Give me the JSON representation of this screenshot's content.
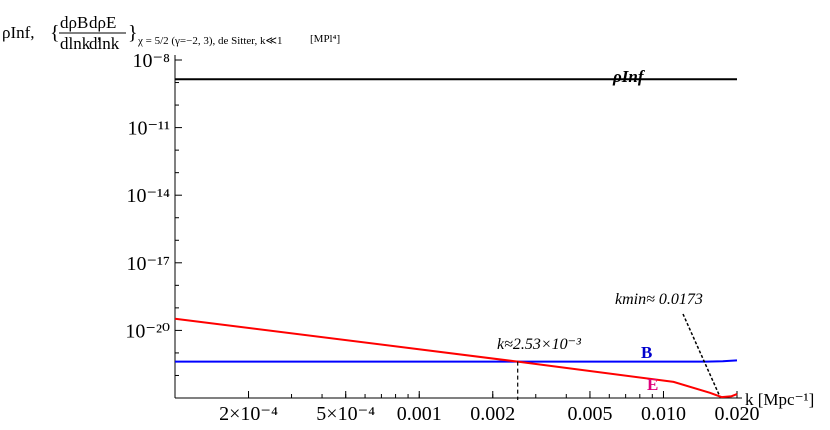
{
  "chart_data": {
    "type": "line",
    "x_scale": "log",
    "y_scale": "log",
    "xlim": [
      0.0001,
      0.02
    ],
    "ylim": [
      1e-23,
      1e-08
    ],
    "grid": false,
    "ylabel": {
      "rho_inf": "ρInf,",
      "brace_open": "{",
      "frac1_num": "dρB",
      "frac1_den": "dlnk",
      "comma": ",",
      "frac2_num": "dρE",
      "frac2_den": "dlnk",
      "brace_close": "}",
      "subscript": "χ = 5/2 (γ=−2, 3), de Sitter, k≪1",
      "units": "[MPl⁴]"
    },
    "xlabel": "k [Mpc⁻¹]",
    "x_ticks": [
      {
        "value": 0.0002,
        "label": "2×10⁻⁴"
      },
      {
        "value": 0.0005,
        "label": "5×10⁻⁴"
      },
      {
        "value": 0.001,
        "label": "0.001"
      },
      {
        "value": 0.002,
        "label": "0.002"
      },
      {
        "value": 0.005,
        "label": "0.005"
      },
      {
        "value": 0.01,
        "label": "0.010"
      },
      {
        "value": 0.02,
        "label": "0.020"
      }
    ],
    "y_ticks": [
      {
        "value": 1e-08,
        "label": "10⁻⁸"
      },
      {
        "value": 1e-11,
        "label": "10⁻¹¹"
      },
      {
        "value": 1e-14,
        "label": "10⁻¹⁴"
      },
      {
        "value": 1e-17,
        "label": "10⁻¹⁷"
      },
      {
        "value": 1e-20,
        "label": "10⁻²⁰"
      }
    ],
    "series": [
      {
        "name": "ρInf",
        "color": "#000000",
        "points": [
          [
            0.0001,
            1.4e-09
          ],
          [
            0.02,
            1.4e-09
          ]
        ]
      },
      {
        "name": "B",
        "color": "#0000ff",
        "points": [
          [
            0.0001,
            4.1e-22
          ],
          [
            0.015,
            4.1e-22
          ],
          [
            0.0175,
            4.3e-22
          ],
          [
            0.02,
            4.7e-22
          ]
        ]
      },
      {
        "name": "E",
        "color": "#ff0000",
        "points": [
          [
            0.0001,
            3.3e-20
          ],
          [
            0.00253,
            4.1e-22
          ],
          [
            0.011,
            5.2e-23
          ],
          [
            0.0155,
            1.7e-23
          ],
          [
            0.0173,
            1.1e-23
          ],
          [
            0.019,
            1.2e-23
          ],
          [
            0.02,
            1.5e-23
          ]
        ]
      }
    ],
    "series_labels": [
      {
        "text": "ρInf",
        "color": "#000000"
      },
      {
        "text": "B",
        "color": "#0000cd"
      },
      {
        "text": "E",
        "color": "#e0007a"
      }
    ],
    "annotations": [
      {
        "text": "k≈2.53×10⁻³",
        "x": 0.00253
      },
      {
        "text": "kmin≈ 0.0173",
        "x": 0.0173
      }
    ]
  }
}
